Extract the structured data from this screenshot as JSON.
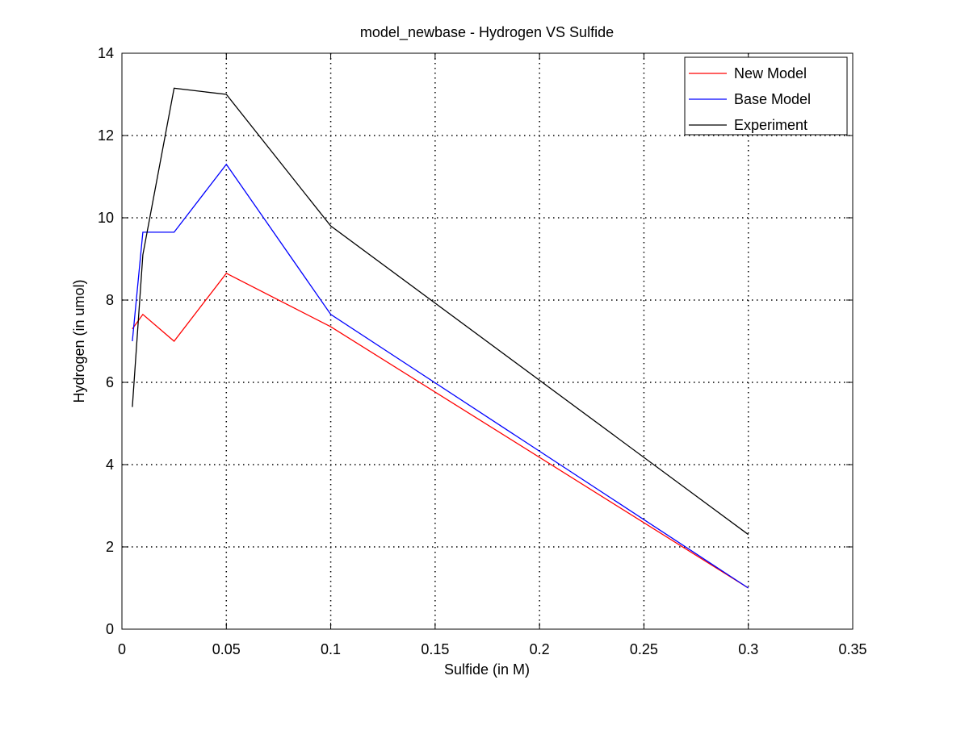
{
  "chart_data": {
    "type": "line",
    "title": "model_newbase - Hydrogen VS Sulfide",
    "xlabel": "Sulfide (in M)",
    "ylabel": "Hydrogen (in umol)",
    "xlim": [
      0,
      0.35
    ],
    "ylim": [
      0,
      14
    ],
    "xticks": [
      0,
      0.05,
      0.1,
      0.15,
      0.2,
      0.25,
      0.3,
      0.35
    ],
    "xtick_labels": [
      "0",
      "0.05",
      "0.1",
      "0.15",
      "0.2",
      "0.25",
      "0.3",
      "0.35"
    ],
    "yticks": [
      0,
      2,
      4,
      6,
      8,
      10,
      12,
      14
    ],
    "ytick_labels": [
      "0",
      "2",
      "4",
      "6",
      "8",
      "10",
      "12",
      "14"
    ],
    "grid": true,
    "legend_position": "top-right",
    "series": [
      {
        "name": "New Model",
        "color": "#ff0000",
        "x": [
          0.005,
          0.01,
          0.025,
          0.05,
          0.1,
          0.3
        ],
        "y": [
          7.3,
          7.65,
          7.0,
          8.65,
          7.35,
          1.0
        ]
      },
      {
        "name": "Base Model",
        "color": "#0000ff",
        "x": [
          0.005,
          0.01,
          0.025,
          0.05,
          0.1,
          0.3
        ],
        "y": [
          7.0,
          9.65,
          9.65,
          11.3,
          7.65,
          1.0
        ]
      },
      {
        "name": "Experiment",
        "color": "#000000",
        "x": [
          0.005,
          0.01,
          0.025,
          0.05,
          0.1,
          0.3
        ],
        "y": [
          5.4,
          9.1,
          13.15,
          13.0,
          9.8,
          2.3
        ]
      }
    ]
  }
}
